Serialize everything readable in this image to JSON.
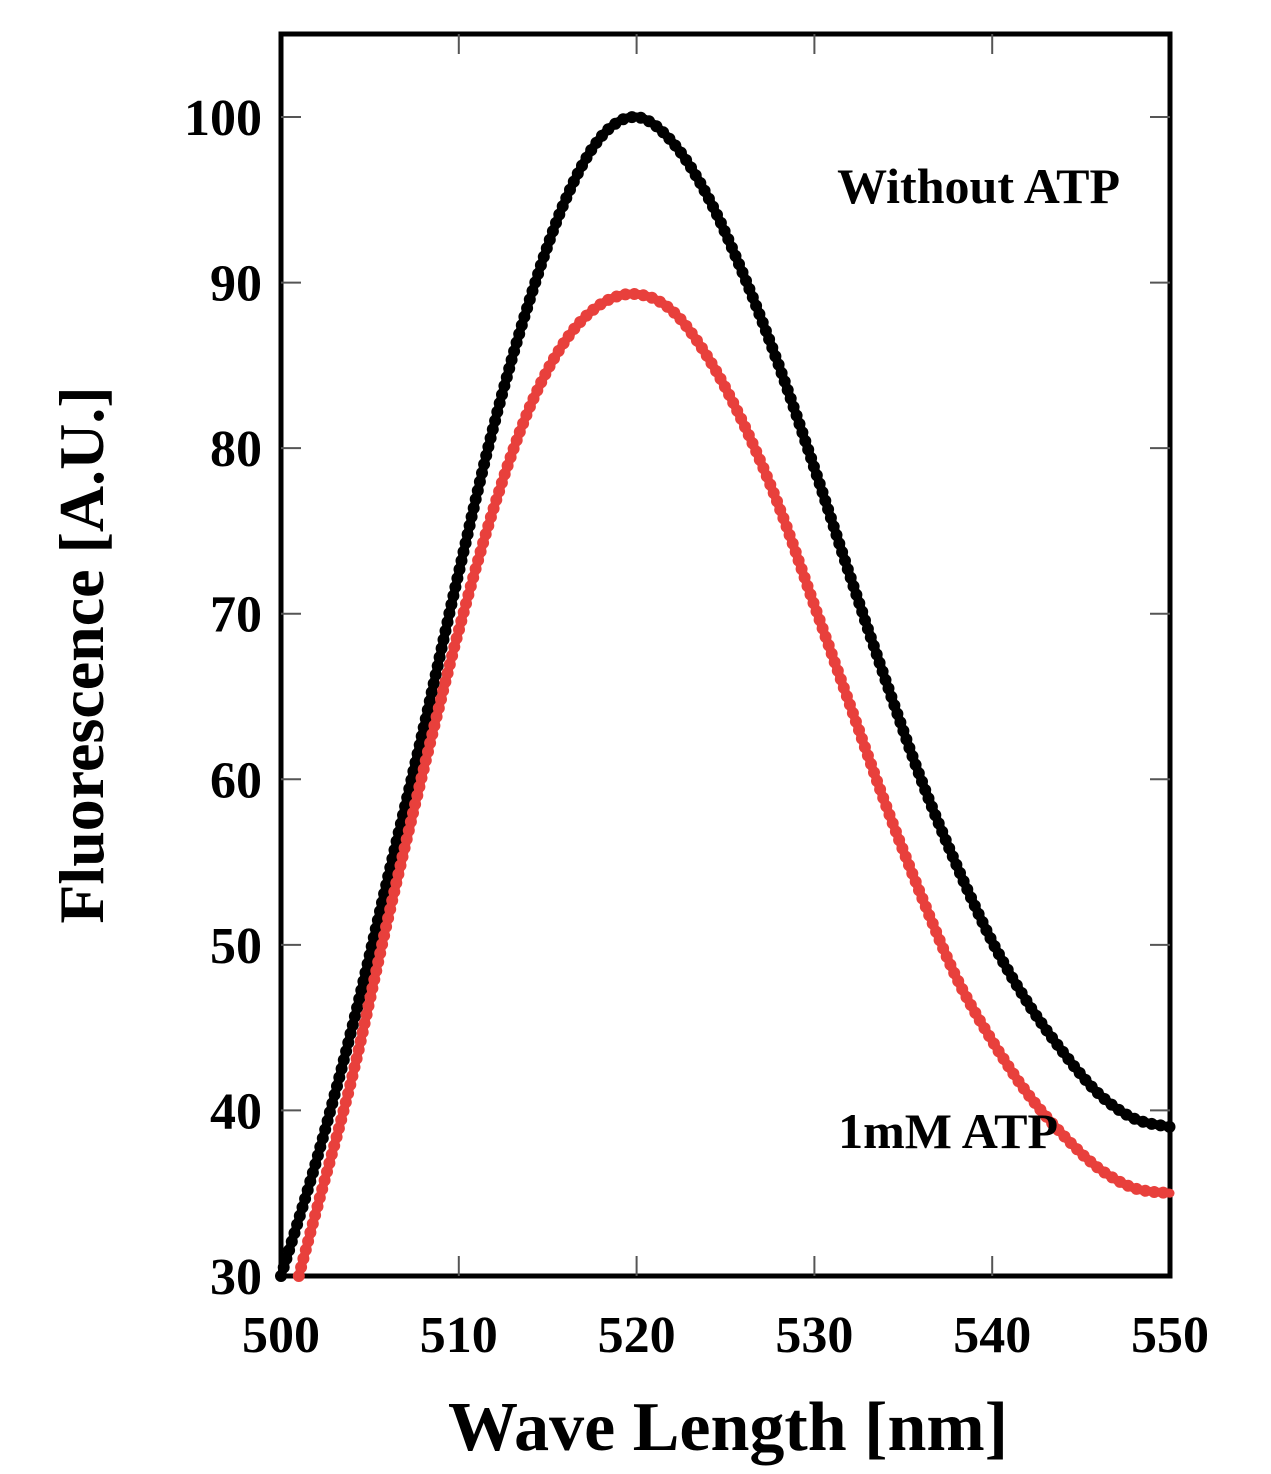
{
  "chart_data": {
    "type": "scatter",
    "title": "",
    "xlabel": "Wave Length [nm]",
    "ylabel": "Fluorescence [A.U.]",
    "xlim": [
      500,
      550
    ],
    "ylim": [
      30,
      105
    ],
    "xticks": [
      500,
      510,
      520,
      530,
      540,
      550
    ],
    "yticks": [
      30,
      40,
      50,
      60,
      70,
      80,
      90,
      100
    ],
    "grid": false,
    "series": [
      {
        "name": "Without ATP",
        "color": "#000000",
        "x": [
          500,
          502,
          504,
          506,
          508,
          510,
          512,
          514,
          516,
          518,
          520,
          522,
          524,
          526,
          528,
          530,
          532,
          534,
          536,
          538,
          540,
          542,
          544,
          546,
          548,
          550
        ],
        "y": [
          30,
          37,
          45,
          54,
          63,
          72.5,
          81.5,
          89,
          95,
          98.8,
          100,
          98.5,
          95.2,
          90.5,
          85,
          78.8,
          72.3,
          66,
          60,
          54.8,
          50.2,
          46.5,
          43.5,
          41,
          39.5,
          39
        ]
      },
      {
        "name": "1mM ATP",
        "color": "#e8403c",
        "x": [
          501,
          502,
          504,
          506,
          508,
          510,
          512,
          514,
          516,
          518,
          520,
          522,
          524,
          526,
          528,
          530,
          532,
          534,
          536,
          538,
          540,
          542,
          544,
          546,
          548,
          550
        ],
        "y": [
          30,
          34,
          42,
          51.5,
          60.5,
          69,
          76.5,
          82.5,
          86.5,
          88.7,
          89.3,
          88.3,
          85.5,
          81.5,
          76.5,
          70.5,
          64.5,
          58.5,
          53,
          48,
          44.2,
          41,
          38.5,
          36.5,
          35.3,
          35
        ]
      }
    ]
  }
}
